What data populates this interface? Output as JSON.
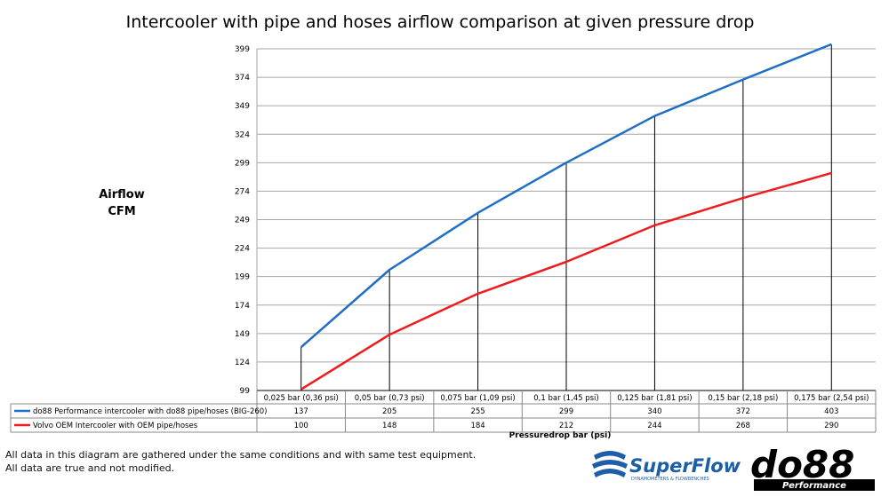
{
  "chart_data": {
    "type": "line",
    "title": "Intercooler with pipe and hoses airflow comparison at given pressure drop",
    "ylabel": "Airflow CFM",
    "ylabel_lines": [
      "Airflow",
      "CFM"
    ],
    "xlabel": "Pressuredrop bar (psi)",
    "categories": [
      "0,025 bar (0,36 psi)",
      "0,05 bar (0,73 psi)",
      "0,075 bar (1,09 psi)",
      "0,1 bar (1,45 psi)",
      "0,125 bar (1,81 psi)",
      "0,15 bar (2,18 psi)",
      "0,175 bar (2,54 psi)"
    ],
    "series": [
      {
        "name": "do88 Performance intercooler with do88 pipe/hoses (BIG-260)",
        "color": "#1f6fc5",
        "values": [
          137,
          205,
          255,
          299,
          340,
          372,
          403
        ]
      },
      {
        "name": "Volvo OEM Intercooler with OEM pipe/hoses",
        "color": "#ee1c1c",
        "values": [
          100,
          148,
          184,
          212,
          244,
          268,
          290
        ]
      }
    ],
    "yticks": [
      99,
      124,
      149,
      174,
      199,
      224,
      249,
      274,
      299,
      324,
      349,
      374,
      399
    ],
    "ylim": [
      99,
      399
    ],
    "grid": true,
    "legend": "data table below chart"
  },
  "footnote": [
    "All data in this diagram are gathered under the same conditions and with same test equipment.",
    "All data are true and not modified."
  ],
  "logos": {
    "superflow": {
      "name": "SuperFlow",
      "tagline": "DYNAMOMETERS & FLOWBENCHES",
      "color": "#1d5ea8"
    },
    "do88": {
      "name": "do88",
      "tagline": "Performance"
    }
  }
}
